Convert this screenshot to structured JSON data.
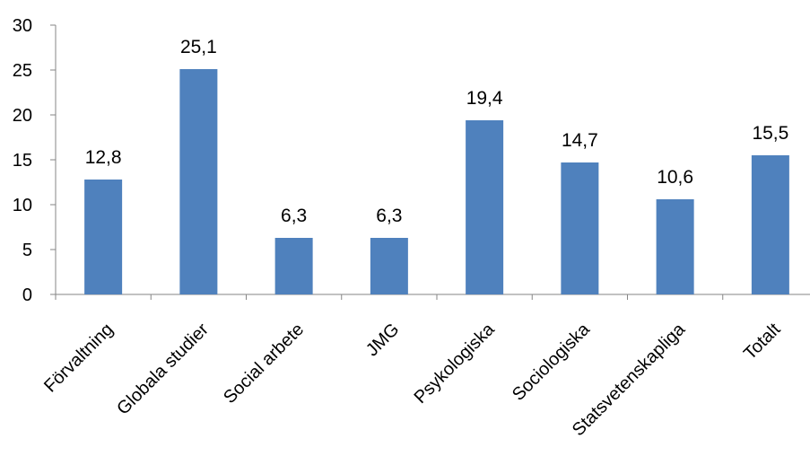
{
  "chart_data": {
    "type": "bar",
    "categories": [
      "Förvaltning",
      "Globala studier",
      "Social arbete",
      "JMG",
      "Psykologiska",
      "Sociologiska",
      "Statsvetenskapliga",
      "Totalt"
    ],
    "values": [
      12.8,
      25.1,
      6.3,
      6.3,
      19.4,
      14.7,
      10.6,
      15.5
    ],
    "value_labels": [
      "12,8",
      "25,1",
      "6,3",
      "6,3",
      "19,4",
      "14,7",
      "10,6",
      "15,5"
    ],
    "y_ticks": [
      "0",
      "5",
      "10",
      "15",
      "20",
      "25",
      "30"
    ],
    "ylim": [
      0,
      30
    ],
    "title": "",
    "xlabel": "",
    "ylabel": "",
    "grid": false,
    "legend": "none",
    "bar_color": "#4F81BD",
    "axis_color": "#868686"
  }
}
